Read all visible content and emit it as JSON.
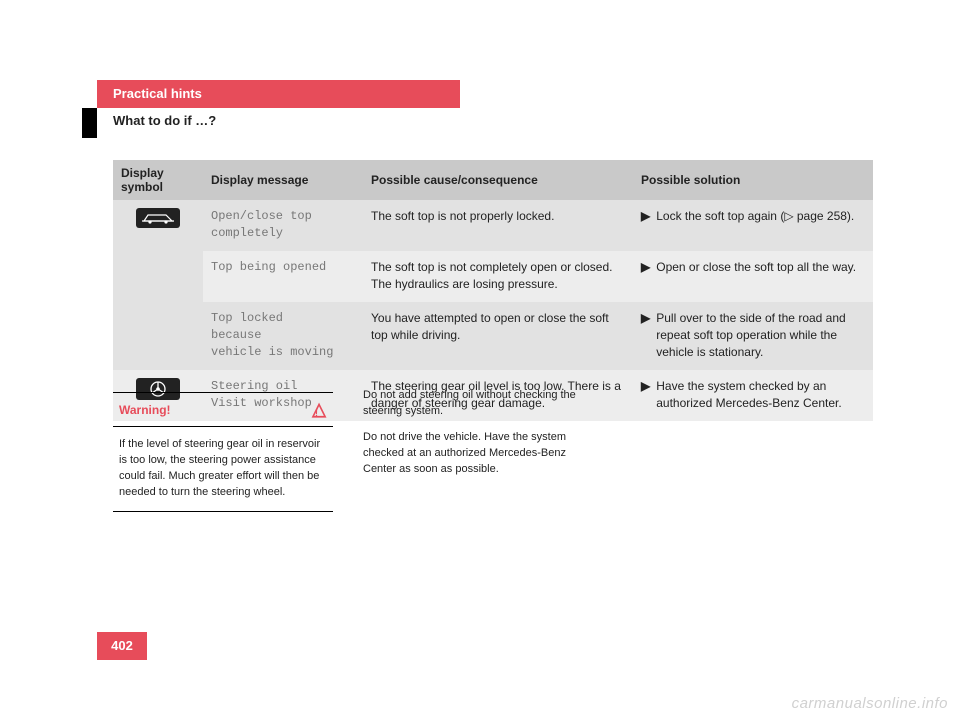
{
  "header": {
    "title": "Practical hints",
    "subtitle": "What to do if …?"
  },
  "table": {
    "headers": {
      "symbol": "Display symbol",
      "message": "Display message",
      "cause": "Possible cause/consequence",
      "solution": "Possible solution"
    },
    "rows": [
      {
        "symbol": "car",
        "message": "Open/close top\ncompletely",
        "cause": "The soft top is not properly locked.",
        "solution": "Lock the soft top again (▷ page 258).",
        "shade": "a"
      },
      {
        "symbol": "",
        "message": "Top being opened",
        "cause": "The soft top is not completely open or closed. The hydraulics are losing pressure.",
        "solution": "Open or close the soft top all the way.",
        "shade": "b"
      },
      {
        "symbol": "",
        "message": "Top locked\nbecause\nvehicle is moving",
        "cause": "You have attempted to open or close the soft top while driving.",
        "solution": "Pull over to the side of the road and repeat soft top operation while the vehicle is stationary.",
        "shade": "a"
      },
      {
        "symbol": "steering",
        "message": "Steering oil\nVisit workshop",
        "cause": "The steering gear oil level is too low. There is a danger of steering gear damage.",
        "solution": "Have the system checked by an authorized Mercedes-Benz Center.",
        "shade": "b"
      }
    ]
  },
  "warning": {
    "title": "Warning!",
    "body": "If the level of steering gear oil in reservoir is too low, the steering power assistance could fail. Much greater effort will then be needed to turn the steering wheel."
  },
  "note": {
    "p1": "Do not add steering oil without checking the steering system.",
    "p2": "Do not drive the vehicle. Have the system checked at an authorized Mercedes-Benz Center as soon as possible."
  },
  "page": "402",
  "watermark": "carmanualsonline.info",
  "arrow_glyph": "▶"
}
